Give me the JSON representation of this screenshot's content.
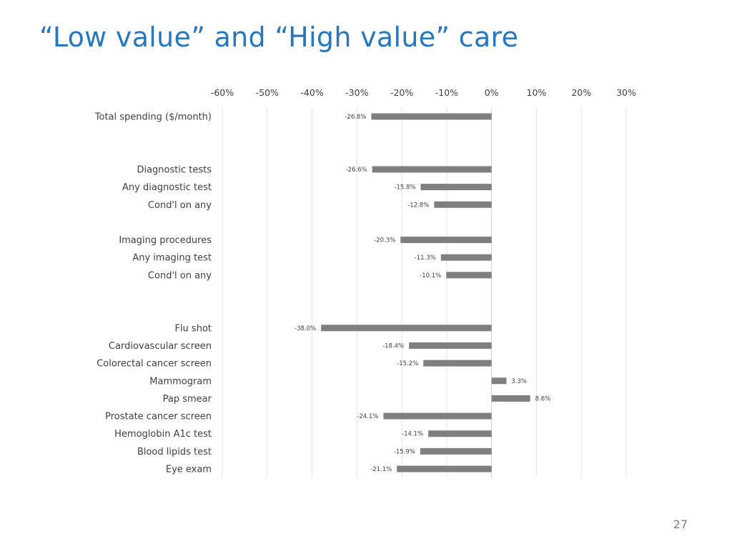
{
  "slide": {
    "title": "“Low value” and “High value” care",
    "page_number": "27"
  },
  "chart_data": {
    "type": "bar",
    "orientation": "horizontal",
    "title": "",
    "xlabel": "",
    "ylabel": "",
    "xlim": [
      -60,
      30
    ],
    "x_ticks": [
      -60,
      -50,
      -40,
      -30,
      -20,
      -10,
      0,
      10,
      20,
      30
    ],
    "x_tick_labels": [
      "-60%",
      "-50%",
      "-40%",
      "-30%",
      "-20%",
      "-10%",
      "0%",
      "10%",
      "20%",
      "30%"
    ],
    "x_axis_position": "top",
    "grid": "vertical",
    "bar_color": "#7f7f7f",
    "categories": [
      "Total spending ($/month)",
      "",
      "",
      "Diagnostic tests",
      "Any diagnostic test",
      "Cond'l on any",
      "",
      "Imaging procedures",
      "Any imaging test",
      "Cond'l on any",
      "",
      "",
      "Flu shot",
      "Cardiovascular screen",
      "Colorectal cancer screen",
      "Mammogram",
      "Pap smear",
      "Prostate cancer screen",
      "Hemoglobin A1c test",
      "Blood lipids test",
      "Eye exam"
    ],
    "values": [
      -26.8,
      null,
      null,
      -26.6,
      -15.8,
      -12.8,
      null,
      -20.3,
      -11.3,
      -10.1,
      null,
      null,
      -38.0,
      -18.4,
      -15.2,
      3.3,
      8.6,
      -24.1,
      -14.1,
      -15.9,
      -21.1
    ],
    "data_labels": [
      "-26.8%",
      "",
      "",
      "-26.6%",
      "-15.8%",
      "-12.8%",
      "",
      "-20.3%",
      "-11.3%",
      "-10.1%",
      "",
      "",
      "-38.0%",
      "-18.4%",
      "-15.2%",
      "3.3%",
      "8.6%",
      "-24.1%",
      "-14.1%",
      "-15.9%",
      "-21.1%"
    ]
  }
}
